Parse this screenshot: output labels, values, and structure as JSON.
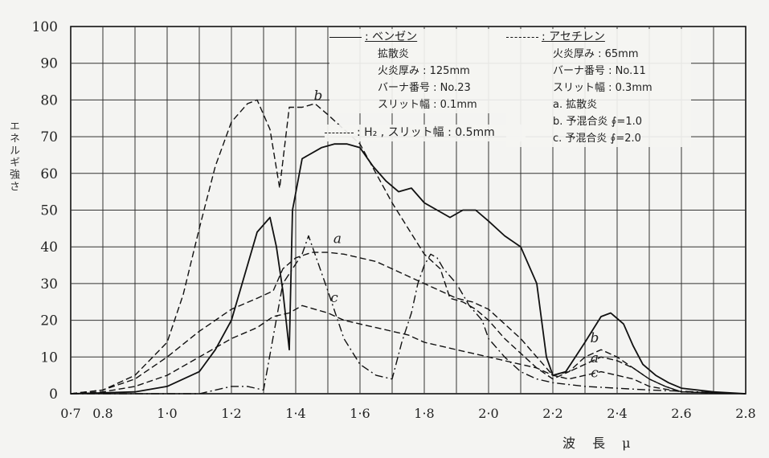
{
  "chart_data": {
    "type": "line",
    "title": "",
    "xlabel": "波 長 μ",
    "ylabel": "エネルギ強さ",
    "xlim": [
      0.7,
      2.8
    ],
    "ylim": [
      0,
      100
    ],
    "grid": true,
    "x_ticks": [
      "0·7",
      "0.8",
      "1·0",
      "1·2",
      "1·4",
      "1·6",
      "1·8",
      "2·0",
      "2·2",
      "2·4",
      "2.6",
      "2.8"
    ],
    "x_tick_values": [
      0.7,
      0.8,
      1.0,
      1.2,
      1.4,
      1.6,
      1.8,
      2.0,
      2.2,
      2.4,
      2.6,
      2.8
    ],
    "y_ticks": [
      "0",
      "10",
      "20",
      "30",
      "40",
      "50",
      "60",
      "70",
      "80",
      "90",
      "100"
    ],
    "y_tick_values": [
      0,
      10,
      20,
      30,
      40,
      50,
      60,
      70,
      80,
      90,
      100
    ],
    "legend": {
      "benzene": {
        "label": ": ベンゼン",
        "lines": [
          "拡散炎",
          "火炎厚み : 125mm",
          "バーナ番号 : No.23",
          "スリット幅 : 0.1mm"
        ]
      },
      "acetylene": {
        "label": ": アセチレン",
        "lines": [
          "火炎厚み : 65mm",
          "バーナ番号 : No.11",
          "スリット幅 : 0.3mm",
          "a. 拡散炎",
          "b. 予混合炎 ∮=1.0",
          "c. 予混合炎 ∮=2.0"
        ]
      },
      "h2": {
        "label": ": H₂ , スリット幅 : 0.5mm"
      }
    },
    "annotations": [
      {
        "text": "b",
        "x": 1.47,
        "y": 80
      },
      {
        "text": "a",
        "x": 1.53,
        "y": 41
      },
      {
        "text": "c",
        "x": 1.52,
        "y": 25
      },
      {
        "text": "b",
        "x": 2.33,
        "y": 14
      },
      {
        "text": "a",
        "x": 2.33,
        "y": 8.5
      },
      {
        "text": "c",
        "x": 2.33,
        "y": 4.5
      }
    ],
    "series": [
      {
        "name": "ベンゼン",
        "style": "solid",
        "points": [
          [
            0.7,
            0
          ],
          [
            0.9,
            0.5
          ],
          [
            1.0,
            2
          ],
          [
            1.1,
            6
          ],
          [
            1.15,
            12
          ],
          [
            1.2,
            20
          ],
          [
            1.25,
            35
          ],
          [
            1.28,
            44
          ],
          [
            1.32,
            48
          ],
          [
            1.34,
            40
          ],
          [
            1.36,
            28
          ],
          [
            1.38,
            12
          ],
          [
            1.39,
            50
          ],
          [
            1.42,
            64
          ],
          [
            1.48,
            67
          ],
          [
            1.52,
            68
          ],
          [
            1.56,
            68
          ],
          [
            1.6,
            67
          ],
          [
            1.64,
            62
          ],
          [
            1.68,
            58
          ],
          [
            1.72,
            55
          ],
          [
            1.76,
            56
          ],
          [
            1.8,
            52
          ],
          [
            1.84,
            50
          ],
          [
            1.88,
            48
          ],
          [
            1.92,
            50
          ],
          [
            1.96,
            50
          ],
          [
            2.0,
            47
          ],
          [
            2.05,
            43
          ],
          [
            2.1,
            40
          ],
          [
            2.15,
            30
          ],
          [
            2.18,
            10
          ],
          [
            2.2,
            5
          ],
          [
            2.24,
            6
          ],
          [
            2.3,
            14
          ],
          [
            2.35,
            21
          ],
          [
            2.38,
            22
          ],
          [
            2.42,
            19
          ],
          [
            2.45,
            13
          ],
          [
            2.48,
            8
          ],
          [
            2.52,
            5
          ],
          [
            2.56,
            3
          ],
          [
            2.6,
            1.5
          ],
          [
            2.7,
            0.5
          ],
          [
            2.8,
            0
          ]
        ]
      },
      {
        "name": "b",
        "style": "dashed",
        "points": [
          [
            0.7,
            0
          ],
          [
            0.8,
            1
          ],
          [
            0.9,
            5
          ],
          [
            1.0,
            14
          ],
          [
            1.05,
            27
          ],
          [
            1.1,
            45
          ],
          [
            1.15,
            62
          ],
          [
            1.2,
            74
          ],
          [
            1.25,
            79
          ],
          [
            1.28,
            80
          ],
          [
            1.32,
            72
          ],
          [
            1.35,
            56
          ],
          [
            1.38,
            78
          ],
          [
            1.42,
            78
          ],
          [
            1.46,
            79
          ],
          [
            1.5,
            76
          ],
          [
            1.55,
            72
          ],
          [
            1.6,
            68
          ],
          [
            1.65,
            60
          ],
          [
            1.7,
            52
          ],
          [
            1.75,
            45
          ],
          [
            1.8,
            38
          ],
          [
            1.85,
            34
          ],
          [
            1.88,
            26
          ],
          [
            1.92,
            25
          ],
          [
            1.96,
            23
          ],
          [
            2.0,
            20
          ],
          [
            2.05,
            15
          ],
          [
            2.1,
            11
          ],
          [
            2.15,
            7
          ],
          [
            2.2,
            4
          ],
          [
            2.25,
            6
          ],
          [
            2.3,
            10
          ],
          [
            2.35,
            12
          ],
          [
            2.4,
            10
          ],
          [
            2.45,
            7
          ],
          [
            2.5,
            4
          ],
          [
            2.55,
            2
          ],
          [
            2.6,
            0.5
          ],
          [
            2.8,
            0
          ]
        ]
      },
      {
        "name": "a",
        "style": "dashed",
        "points": [
          [
            0.7,
            0
          ],
          [
            0.8,
            1
          ],
          [
            0.9,
            4
          ],
          [
            1.0,
            10
          ],
          [
            1.1,
            17
          ],
          [
            1.2,
            23
          ],
          [
            1.28,
            26
          ],
          [
            1.33,
            28
          ],
          [
            1.36,
            34
          ],
          [
            1.4,
            37
          ],
          [
            1.45,
            38.5
          ],
          [
            1.5,
            38.5
          ],
          [
            1.55,
            38
          ],
          [
            1.6,
            37
          ],
          [
            1.65,
            36
          ],
          [
            1.7,
            34
          ],
          [
            1.75,
            32
          ],
          [
            1.8,
            30
          ],
          [
            1.85,
            28
          ],
          [
            1.9,
            26
          ],
          [
            1.95,
            25
          ],
          [
            2.0,
            23
          ],
          [
            2.05,
            19
          ],
          [
            2.1,
            15
          ],
          [
            2.15,
            10
          ],
          [
            2.2,
            5
          ],
          [
            2.25,
            6
          ],
          [
            2.3,
            8
          ],
          [
            2.35,
            10
          ],
          [
            2.4,
            9
          ],
          [
            2.45,
            7
          ],
          [
            2.5,
            4
          ],
          [
            2.55,
            2
          ],
          [
            2.6,
            0.5
          ],
          [
            2.8,
            0
          ]
        ]
      },
      {
        "name": "c",
        "style": "dashed",
        "points": [
          [
            0.7,
            0
          ],
          [
            0.8,
            0.5
          ],
          [
            0.9,
            2
          ],
          [
            1.0,
            5
          ],
          [
            1.1,
            10
          ],
          [
            1.2,
            15
          ],
          [
            1.28,
            18
          ],
          [
            1.33,
            21
          ],
          [
            1.38,
            22
          ],
          [
            1.42,
            24
          ],
          [
            1.46,
            23
          ],
          [
            1.5,
            22
          ],
          [
            1.55,
            20
          ],
          [
            1.6,
            19
          ],
          [
            1.65,
            18
          ],
          [
            1.7,
            17
          ],
          [
            1.75,
            16
          ],
          [
            1.8,
            14
          ],
          [
            1.85,
            13
          ],
          [
            1.9,
            12
          ],
          [
            1.95,
            11
          ],
          [
            2.0,
            10
          ],
          [
            2.05,
            9
          ],
          [
            2.1,
            8
          ],
          [
            2.15,
            7
          ],
          [
            2.2,
            5
          ],
          [
            2.25,
            4
          ],
          [
            2.3,
            5
          ],
          [
            2.35,
            6
          ],
          [
            2.4,
            5
          ],
          [
            2.45,
            4
          ],
          [
            2.5,
            2
          ],
          [
            2.6,
            0.5
          ],
          [
            2.8,
            0
          ]
        ]
      },
      {
        "name": "H₂",
        "style": "dashdot",
        "points": [
          [
            0.7,
            0
          ],
          [
            1.1,
            0
          ],
          [
            1.2,
            2
          ],
          [
            1.25,
            2
          ],
          [
            1.3,
            1
          ],
          [
            1.36,
            30
          ],
          [
            1.39,
            34
          ],
          [
            1.42,
            38
          ],
          [
            1.44,
            43
          ],
          [
            1.46,
            38
          ],
          [
            1.5,
            28
          ],
          [
            1.55,
            15
          ],
          [
            1.6,
            8
          ],
          [
            1.65,
            5
          ],
          [
            1.7,
            4
          ],
          [
            1.73,
            14
          ],
          [
            1.76,
            22
          ],
          [
            1.78,
            30
          ],
          [
            1.8,
            35
          ],
          [
            1.82,
            38
          ],
          [
            1.84,
            37
          ],
          [
            1.86,
            34
          ],
          [
            1.9,
            30
          ],
          [
            1.94,
            24
          ],
          [
            1.98,
            20
          ],
          [
            2.0,
            15
          ],
          [
            2.05,
            10
          ],
          [
            2.1,
            6
          ],
          [
            2.15,
            4
          ],
          [
            2.2,
            3
          ],
          [
            2.3,
            2
          ],
          [
            2.5,
            1
          ],
          [
            2.8,
            0
          ]
        ]
      }
    ]
  }
}
